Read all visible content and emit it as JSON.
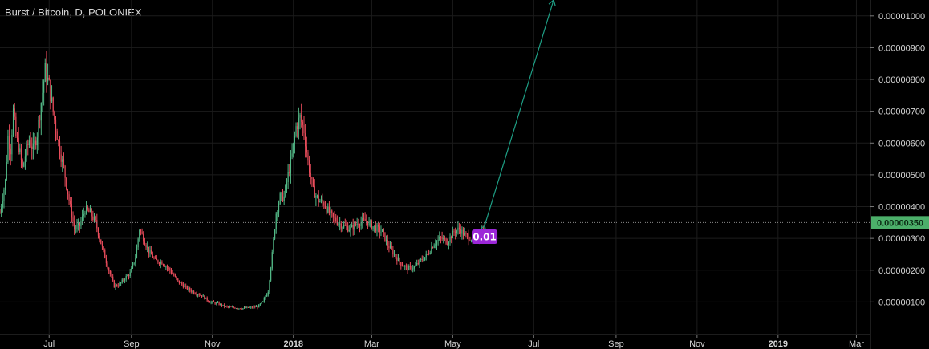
{
  "chart_data": {
    "type": "candlestick",
    "title": "Burst / Bitcoin, D, POLONIEX",
    "y_ticks": [
      "0.00000100",
      "0.00000200",
      "0.00000300",
      "0.00000400",
      "0.00000500",
      "0.00000600",
      "0.00000700",
      "0.00000800",
      "0.00000900",
      "0.00001000"
    ],
    "y_tick_values": [
      100,
      200,
      300,
      400,
      500,
      600,
      700,
      800,
      900,
      1000
    ],
    "ylim": [
      0,
      1050
    ],
    "x_ticks": [
      {
        "label": "Jul",
        "bold": false,
        "t": 15
      },
      {
        "label": "Sep",
        "bold": false,
        "t": 77
      },
      {
        "label": "Nov",
        "bold": false,
        "t": 138
      },
      {
        "label": "2018",
        "bold": true,
        "t": 199
      },
      {
        "label": "Mar",
        "bold": false,
        "t": 258
      },
      {
        "label": "May",
        "bold": false,
        "t": 319
      },
      {
        "label": "Jul",
        "bold": false,
        "t": 380
      },
      {
        "label": "Sep",
        "bold": false,
        "t": 442
      },
      {
        "label": "Nov",
        "bold": false,
        "t": 503
      },
      {
        "label": "2019",
        "bold": true,
        "t": 564
      },
      {
        "label": "Mar",
        "bold": false,
        "t": 623
      }
    ],
    "xlim": [
      -22,
      633
    ],
    "last_price": {
      "value": 350,
      "label": "0.00000350",
      "color": "#4caf6a"
    },
    "annotation": {
      "text": "0.01",
      "color": "#9c27d8",
      "t": 343,
      "y": 303
    },
    "arrow": {
      "from": {
        "t": 343,
        "y": 340
      },
      "to": {
        "t": 395,
        "y": 1050
      },
      "color": "#1e9f85"
    },
    "anchors": [
      [
        -22,
        380
      ],
      [
        -18,
        480
      ],
      [
        -16,
        620
      ],
      [
        -14,
        580
      ],
      [
        -12,
        700
      ],
      [
        -10,
        620
      ],
      [
        -8,
        590
      ],
      [
        -5,
        520
      ],
      [
        -3,
        560
      ],
      [
        0,
        610
      ],
      [
        3,
        580
      ],
      [
        6,
        630
      ],
      [
        10,
        760
      ],
      [
        12,
        830
      ],
      [
        15,
        780
      ],
      [
        18,
        700
      ],
      [
        22,
        600
      ],
      [
        26,
        520
      ],
      [
        30,
        420
      ],
      [
        34,
        330
      ],
      [
        38,
        340
      ],
      [
        42,
        390
      ],
      [
        46,
        380
      ],
      [
        50,
        350
      ],
      [
        55,
        270
      ],
      [
        60,
        200
      ],
      [
        64,
        150
      ],
      [
        68,
        155
      ],
      [
        72,
        175
      ],
      [
        76,
        190
      ],
      [
        80,
        240
      ],
      [
        83,
        330
      ],
      [
        86,
        300
      ],
      [
        90,
        260
      ],
      [
        95,
        230
      ],
      [
        100,
        225
      ],
      [
        106,
        200
      ],
      [
        112,
        165
      ],
      [
        118,
        145
      ],
      [
        124,
        130
      ],
      [
        130,
        120
      ],
      [
        136,
        100
      ],
      [
        142,
        95
      ],
      [
        148,
        85
      ],
      [
        154,
        82
      ],
      [
        160,
        80
      ],
      [
        166,
        82
      ],
      [
        172,
        85
      ],
      [
        176,
        100
      ],
      [
        180,
        135
      ],
      [
        183,
        250
      ],
      [
        186,
        380
      ],
      [
        189,
        430
      ],
      [
        192,
        430
      ],
      [
        195,
        500
      ],
      [
        198,
        560
      ],
      [
        201,
        650
      ],
      [
        204,
        680
      ],
      [
        207,
        640
      ],
      [
        210,
        540
      ],
      [
        214,
        450
      ],
      [
        218,
        420
      ],
      [
        222,
        410
      ],
      [
        226,
        380
      ],
      [
        230,
        360
      ],
      [
        236,
        340
      ],
      [
        242,
        330
      ],
      [
        248,
        350
      ],
      [
        254,
        355
      ],
      [
        258,
        340
      ],
      [
        262,
        330
      ],
      [
        266,
        320
      ],
      [
        270,
        280
      ],
      [
        275,
        250
      ],
      [
        280,
        220
      ],
      [
        285,
        205
      ],
      [
        290,
        210
      ],
      [
        295,
        230
      ],
      [
        300,
        250
      ],
      [
        305,
        285
      ],
      [
        310,
        300
      ],
      [
        315,
        290
      ],
      [
        320,
        320
      ],
      [
        324,
        330
      ],
      [
        328,
        310
      ],
      [
        333,
        300
      ],
      [
        338,
        305
      ],
      [
        343,
        330
      ]
    ]
  }
}
